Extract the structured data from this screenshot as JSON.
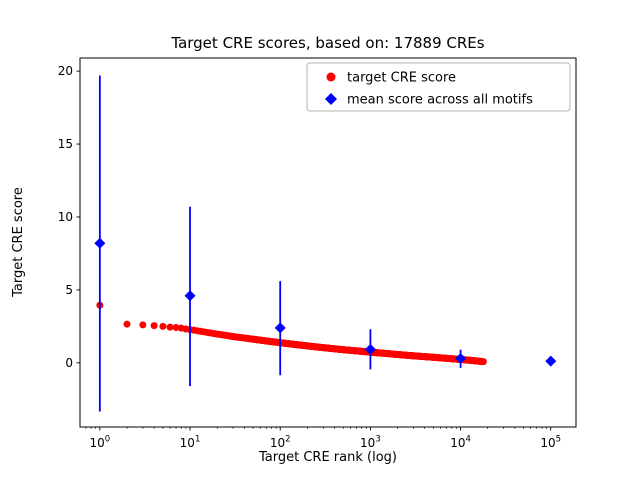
{
  "figure": {
    "title": "Target CRE scores, based on: 17889 CREs",
    "xlabel": "Target CRE rank (log)",
    "ylabel": "Target CRE score"
  },
  "legend": {
    "entries": [
      {
        "label": "target CRE score",
        "marker": "circle",
        "color": "#ff0000"
      },
      {
        "label": "mean score across all motifs",
        "marker": "diamond",
        "color": "#0000ff"
      }
    ]
  },
  "chart_data": {
    "type": "scatter",
    "title": "Target CRE scores, based on: 17889 CREs",
    "xlabel": "Target CRE rank (log)",
    "ylabel": "Target CRE score",
    "x_scale": "log",
    "x_ticks": [
      1,
      10,
      100,
      1000,
      10000,
      100000
    ],
    "y_ticks": [
      0,
      5,
      10,
      15,
      20
    ],
    "xlim_log": [
      -0.22,
      5.28
    ],
    "ylim": [
      -4.4,
      20.9
    ],
    "n_points": 17889,
    "grid": false,
    "legend_position": "upper right",
    "series": [
      {
        "name": "target CRE score",
        "marker": "circle",
        "color": "#ff0000",
        "points": [
          [
            1,
            3.95
          ],
          [
            2,
            2.65
          ],
          [
            3,
            2.6
          ],
          [
            4,
            2.55
          ],
          [
            5,
            2.5
          ],
          [
            6,
            2.45
          ],
          [
            7,
            2.42
          ],
          [
            8,
            2.38
          ],
          [
            9,
            2.32
          ],
          [
            10,
            2.28
          ],
          [
            12,
            2.2
          ],
          [
            15,
            2.1
          ],
          [
            20,
            1.97
          ],
          [
            25,
            1.88
          ],
          [
            30,
            1.8
          ],
          [
            40,
            1.7
          ],
          [
            50,
            1.62
          ],
          [
            70,
            1.5
          ],
          [
            100,
            1.38
          ],
          [
            150,
            1.25
          ],
          [
            200,
            1.16
          ],
          [
            300,
            1.04
          ],
          [
            500,
            0.9
          ],
          [
            700,
            0.82
          ],
          [
            1000,
            0.73
          ],
          [
            1500,
            0.64
          ],
          [
            2000,
            0.57
          ],
          [
            3000,
            0.48
          ],
          [
            5000,
            0.38
          ],
          [
            7000,
            0.31
          ],
          [
            10000,
            0.23
          ],
          [
            13000,
            0.17
          ],
          [
            17889,
            0.08
          ]
        ]
      },
      {
        "name": "mean score across all motifs",
        "marker": "diamond",
        "color": "#0000ff",
        "points": [
          {
            "x": 1,
            "mean": 8.2,
            "lo": -3.35,
            "hi": 19.7
          },
          {
            "x": 10,
            "mean": 4.6,
            "lo": -1.6,
            "hi": 10.7
          },
          {
            "x": 100,
            "mean": 2.4,
            "lo": -0.85,
            "hi": 5.6
          },
          {
            "x": 1000,
            "mean": 0.92,
            "lo": -0.45,
            "hi": 2.3
          },
          {
            "x": 10000,
            "mean": 0.3,
            "lo": -0.35,
            "hi": 0.9
          },
          {
            "x": 100000,
            "mean": 0.12,
            "lo": 0.12,
            "hi": 0.12
          }
        ]
      }
    ]
  }
}
